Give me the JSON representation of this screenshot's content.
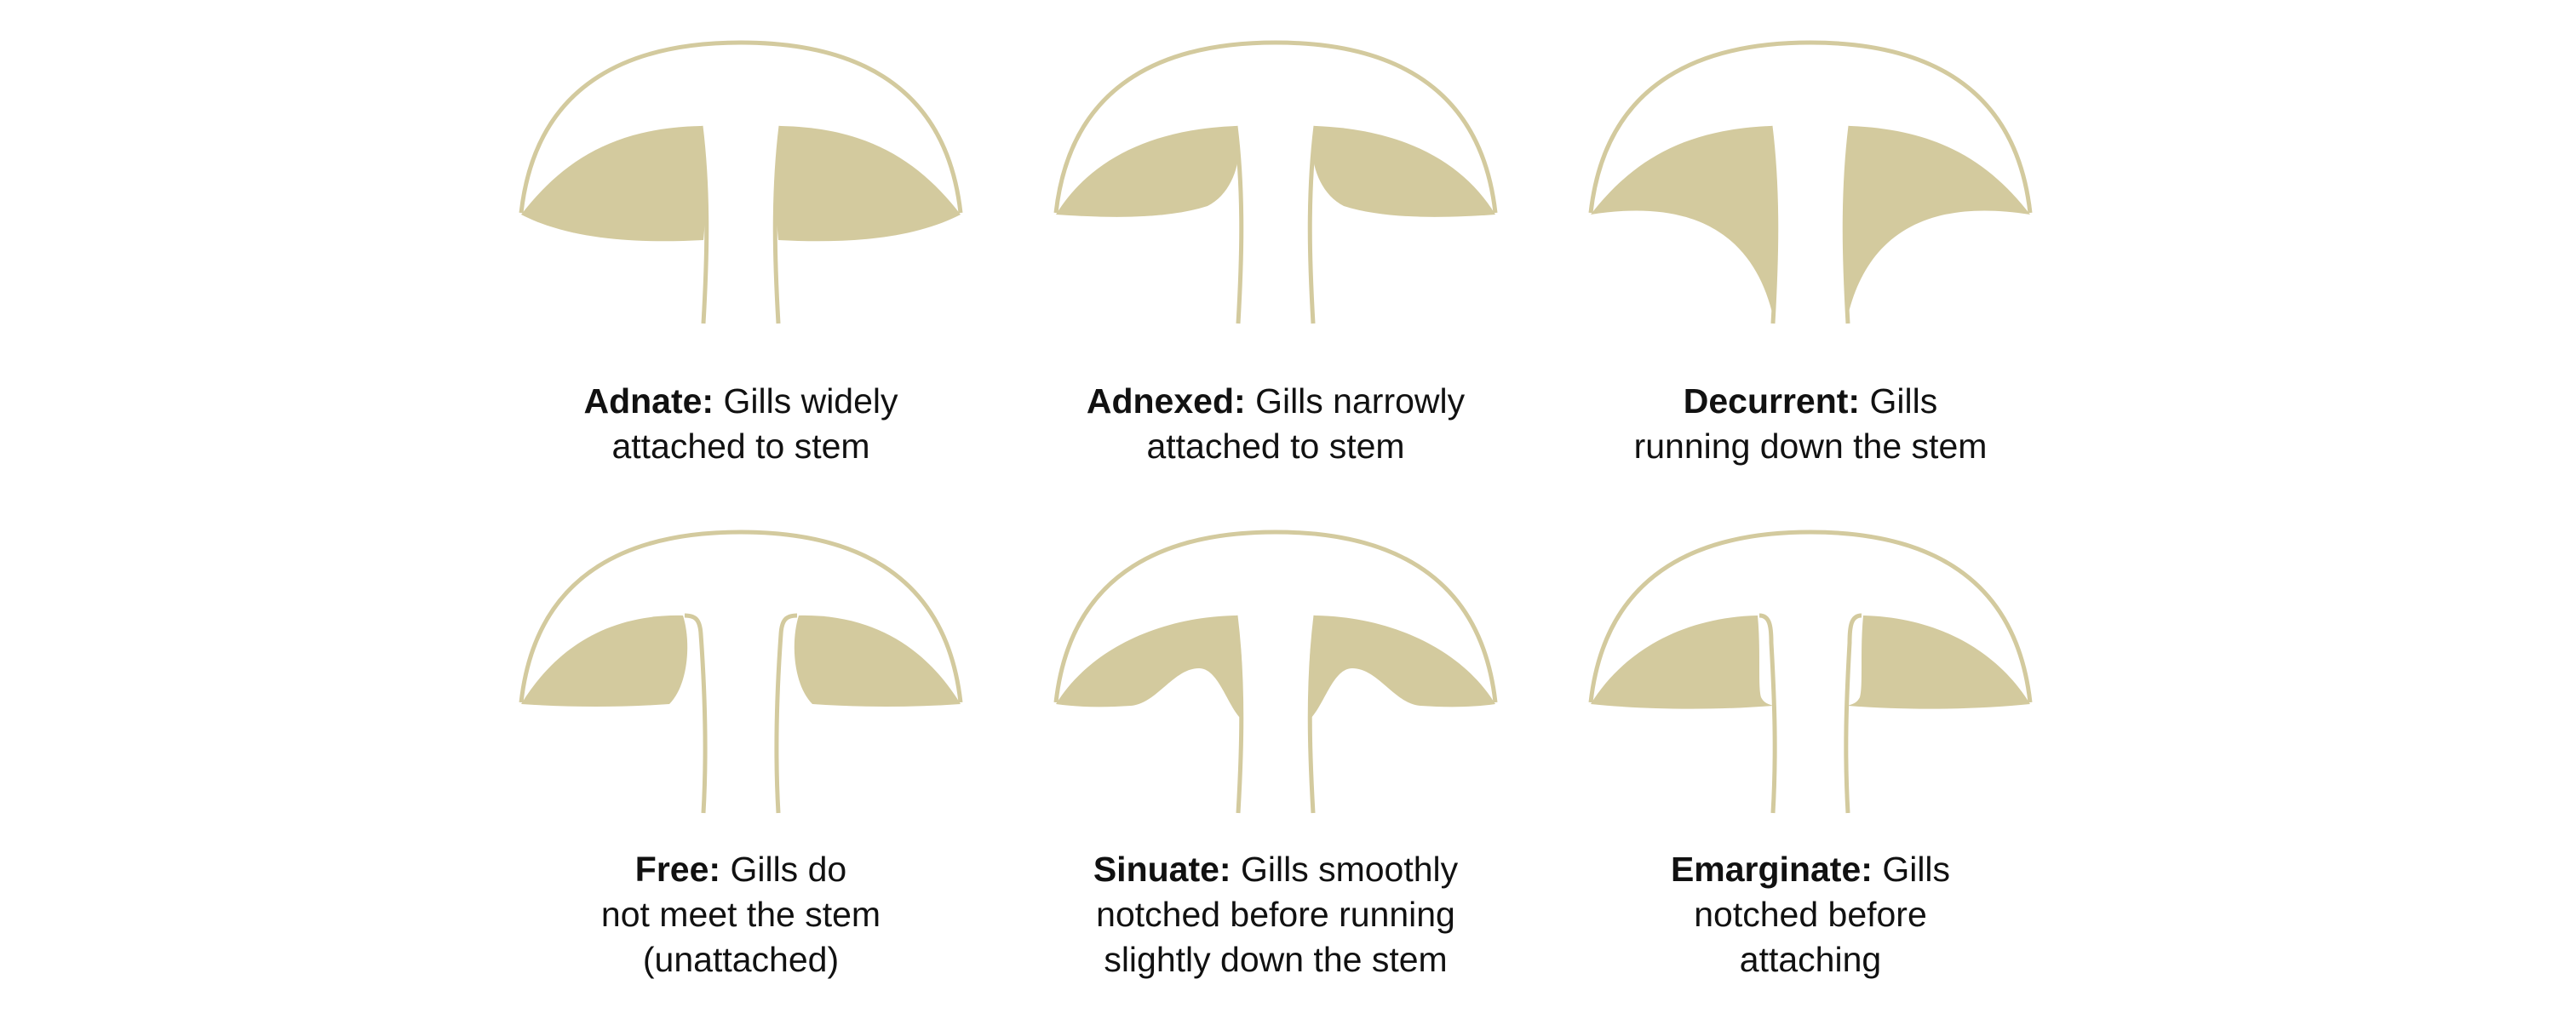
{
  "colors": {
    "gill_fill": "#d3ca9e",
    "cap_outline": "#d3ca9e",
    "stem_outline": "#d3ca9e",
    "text": "#111111",
    "background": "#ffffff"
  },
  "gill_types": [
    {
      "id": "adnate",
      "term": "Adnate:",
      "lines": [
        "Gills widely",
        "attached to stem"
      ]
    },
    {
      "id": "adnexed",
      "term": "Adnexed:",
      "lines": [
        "Gills narrowly",
        "attached to stem"
      ]
    },
    {
      "id": "decurrent",
      "term": "Decurrent:",
      "lines": [
        "Gills",
        "running down the stem"
      ]
    },
    {
      "id": "free",
      "term": "Free:",
      "lines": [
        "Gills do",
        "not meet the stem",
        "(unattached)"
      ]
    },
    {
      "id": "sinuate",
      "term": "Sinuate:",
      "lines": [
        "Gills smoothly",
        "notched before running",
        "slightly down the stem"
      ]
    },
    {
      "id": "emarginate",
      "term": "Emarginate:",
      "lines": [
        "Gills",
        "notched before",
        "attaching"
      ]
    }
  ]
}
